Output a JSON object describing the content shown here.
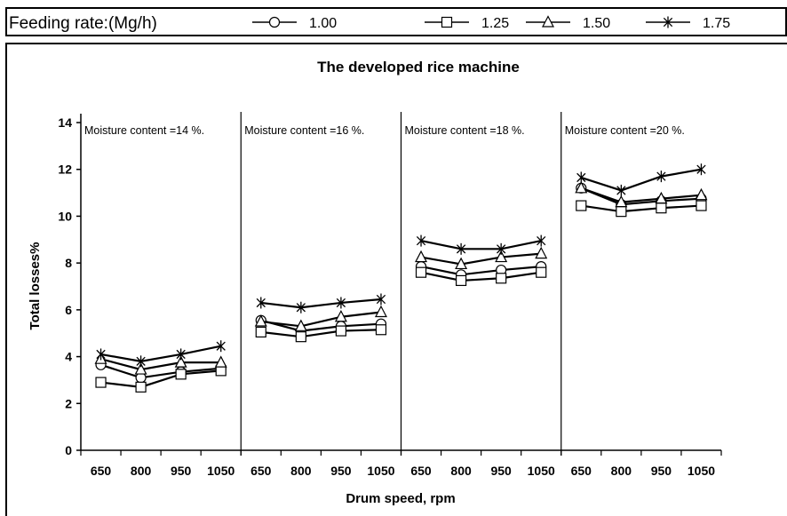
{
  "legend": {
    "title": "Feeding rate:(Mg/h)",
    "entries": [
      {
        "label": "1.00",
        "marker": "circle"
      },
      {
        "label": "1.25",
        "marker": "square"
      },
      {
        "label": "1.50",
        "marker": "triangle"
      },
      {
        "label": "1.75",
        "marker": "asterisk"
      }
    ]
  },
  "chart_data": {
    "type": "line",
    "title": "The developed rice machine",
    "xlabel": "Drum speed, rpm",
    "ylabel": "Total losses%",
    "ylim": [
      0,
      14
    ],
    "yticks": [
      0,
      2,
      4,
      6,
      8,
      10,
      12,
      14
    ],
    "categories": [
      "650",
      "800",
      "950",
      "1050"
    ],
    "grid": false,
    "panels": [
      {
        "label": "Moisture content =14 %.",
        "series": [
          {
            "name": "1.00",
            "values": [
              3.65,
              3.1,
              3.35,
              3.5
            ]
          },
          {
            "name": "1.25",
            "values": [
              2.9,
              2.7,
              3.25,
              3.4
            ]
          },
          {
            "name": "1.50",
            "values": [
              3.9,
              3.45,
              3.75,
              3.75
            ]
          },
          {
            "name": "1.75",
            "values": [
              4.1,
              3.8,
              4.1,
              4.45
            ]
          }
        ]
      },
      {
        "label": "Moisture content =16 %.",
        "series": [
          {
            "name": "1.00",
            "values": [
              5.55,
              5.1,
              5.3,
              5.4
            ]
          },
          {
            "name": "1.25",
            "values": [
              5.05,
              4.85,
              5.1,
              5.15
            ]
          },
          {
            "name": "1.50",
            "values": [
              5.5,
              5.3,
              5.7,
              5.9
            ]
          },
          {
            "name": "1.75",
            "values": [
              6.3,
              6.1,
              6.3,
              6.45
            ]
          }
        ]
      },
      {
        "label": "Moisture content =18 %.",
        "series": [
          {
            "name": "1.00",
            "values": [
              7.85,
              7.5,
              7.7,
              7.85
            ]
          },
          {
            "name": "1.25",
            "values": [
              7.6,
              7.25,
              7.35,
              7.6
            ]
          },
          {
            "name": "1.50",
            "values": [
              8.25,
              7.95,
              8.25,
              8.4
            ]
          },
          {
            "name": "1.75",
            "values": [
              8.95,
              8.6,
              8.6,
              8.95
            ]
          }
        ]
      },
      {
        "label": "Moisture content =20 %.",
        "series": [
          {
            "name": "1.00",
            "values": [
              11.2,
              10.5,
              10.65,
              10.75
            ]
          },
          {
            "name": "1.25",
            "values": [
              10.45,
              10.2,
              10.35,
              10.45
            ]
          },
          {
            "name": "1.50",
            "values": [
              11.2,
              10.6,
              10.75,
              10.9
            ]
          },
          {
            "name": "1.75",
            "values": [
              11.65,
              11.1,
              11.7,
              12.0
            ]
          }
        ]
      }
    ]
  }
}
